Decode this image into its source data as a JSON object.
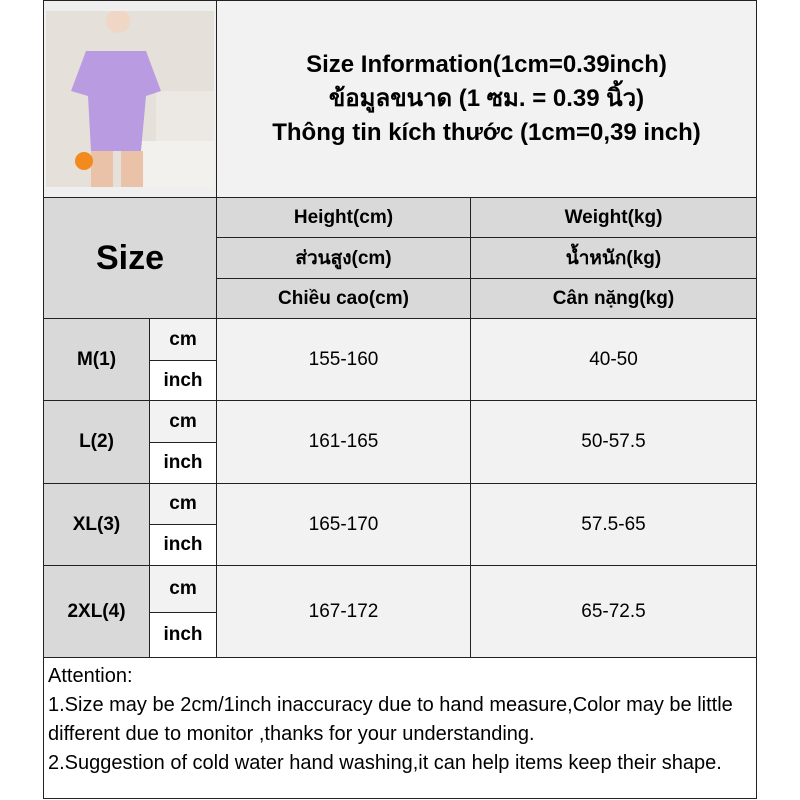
{
  "title": {
    "line1": "Size Information(1cm=0.39inch)",
    "line2": "ข้อมูลขนาด (1 ซม. = 0.39 นิ้ว)",
    "line3": "Thông tin kích thước (1cm=0,39 inch)"
  },
  "product_image": "woman in purple gingham short-sleeve pajama set holding an orange",
  "header": {
    "size": "Size",
    "height": [
      "Height(cm)",
      "ส่วนสูง(cm)",
      "Chiều cao(cm)"
    ],
    "weight": [
      "Weight(kg)",
      "น้ำหนัก(kg)",
      "Cân nặng(kg)"
    ]
  },
  "units": {
    "cm": "cm",
    "inch": "inch"
  },
  "rows": [
    {
      "size": "M(1)",
      "height": "155-160",
      "weight": "40-50"
    },
    {
      "size": "L(2)",
      "height": "161-165",
      "weight": "50-57.5"
    },
    {
      "size": "XL(3)",
      "height": "165-170",
      "weight": "57.5-65"
    },
    {
      "size": "2XL(4)",
      "height": "167-172",
      "weight": "65-72.5"
    }
  ],
  "attention": {
    "heading": "Attention:",
    "note1": "1.Size may be 2cm/1inch inaccuracy due to hand measure,Color may be little different due to monitor ,thanks for your understanding.",
    "note2": "2.Suggestion of cold water hand washing,it can help items keep their shape."
  }
}
